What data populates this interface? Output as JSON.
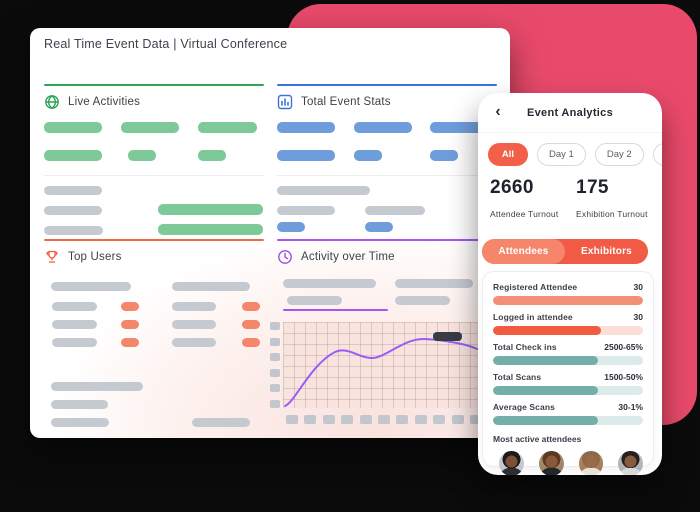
{
  "background": {
    "canvas_color": "#0b0b0b",
    "shape_color": "#e94a6b"
  },
  "dashboard": {
    "title": "Real Time Event Data | Virtual Conference",
    "sections": {
      "live_activities": {
        "label": "Live Activities",
        "accent": "#33a457",
        "icon": "globe-icon"
      },
      "total_event_stats": {
        "label": "Total Event Stats",
        "accent": "#3a74d9",
        "icon": "bar-chart-icon"
      },
      "top_users": {
        "label": "Top Users",
        "accent": "#f15b40",
        "icon": "trophy-icon"
      },
      "activity_over_time": {
        "label": "Activity over Time",
        "accent": "#9b51e0",
        "icon": "clock-icon"
      }
    },
    "activity_chart": {
      "type": "line",
      "line_color": "#9b5cf6",
      "grid": true,
      "has_dark_tooltip_placeholder": true
    }
  },
  "phone": {
    "header": {
      "back_icon": "‹",
      "title": "Event Analytics"
    },
    "filters": [
      {
        "label": "All",
        "active": true
      },
      {
        "label": "Day 1",
        "active": false
      },
      {
        "label": "Day 2",
        "active": false
      },
      {
        "label": "Da",
        "active": false,
        "clipped": true
      }
    ],
    "stats": [
      {
        "value": "2660",
        "label": "Attendee Turnout"
      },
      {
        "value": "175",
        "label": "Exhibition Turnout"
      }
    ],
    "tabs": [
      {
        "label": "Attendees",
        "active": true
      },
      {
        "label": "Exhibitors",
        "active": false
      }
    ],
    "metrics": [
      {
        "label": "Registered Attendee",
        "value": "30",
        "fill": 1,
        "color": "#f28f77"
      },
      {
        "label": "Logged in attendee",
        "value": "30",
        "fill": 0.72,
        "color": "#f15b40"
      },
      {
        "label": "Total Check ins",
        "value": "2500-65%",
        "fill": 0.7,
        "color": "#74aea8"
      },
      {
        "label": "Total Scans",
        "value": "1500-50%",
        "fill": 0.7,
        "color": "#74aea8"
      },
      {
        "label": "Average Scans",
        "value": "30-1%",
        "fill": 0.7,
        "color": "#74aea8"
      }
    ],
    "most_active": {
      "label": "Most active attendees",
      "avatar_count": 4
    }
  },
  "palette": {
    "skeleton_gray": "#c5c9d0",
    "skeleton_green": "#7ec998",
    "skeleton_blue": "#6f9cdb",
    "skeleton_orange": "#f4876b",
    "chip_active": "#f2604a",
    "segment_bg": "#f15b46",
    "segment_active": "#f5866c",
    "teal": "#74aea8",
    "chart_bg": "#f9e3df",
    "line_purple": "#9b5cf6"
  }
}
